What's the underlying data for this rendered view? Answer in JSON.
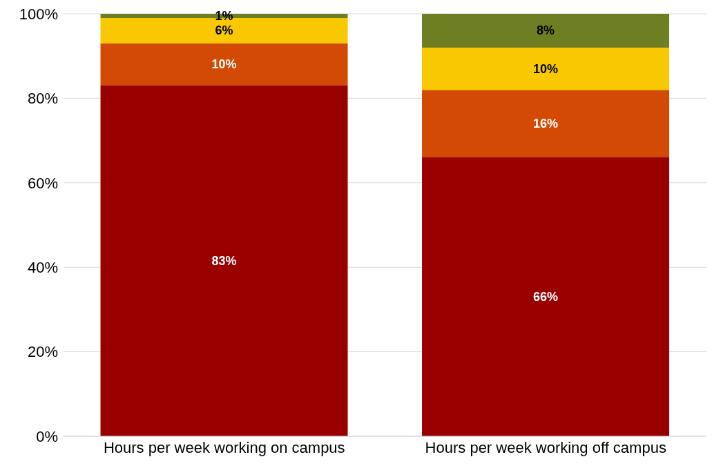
{
  "chart_data": {
    "type": "bar",
    "stacked": true,
    "categories": [
      "Hours per week working on campus",
      "Hours per week working off campus"
    ],
    "series": [
      {
        "color": "#990000",
        "values": [
          83,
          66
        ],
        "value_labels": [
          "83%",
          "66%"
        ]
      },
      {
        "color": "#d24a04",
        "values": [
          10,
          16
        ],
        "value_labels": [
          "10%",
          "16%"
        ]
      },
      {
        "color": "#f8c800",
        "values": [
          6,
          10
        ],
        "value_labels": [
          "6%",
          "10%"
        ]
      },
      {
        "color": "#6e7e22",
        "values": [
          1,
          8
        ],
        "value_labels": [
          "1%",
          "8%"
        ]
      }
    ],
    "ylim": [
      0,
      100
    ],
    "yticks": [
      {
        "value": 0,
        "label": "0%"
      },
      {
        "value": 20,
        "label": "20%"
      },
      {
        "value": 40,
        "label": "40%"
      },
      {
        "value": 60,
        "label": "60%"
      },
      {
        "value": 80,
        "label": "80%"
      },
      {
        "value": 100,
        "label": "100%"
      }
    ],
    "grid": "y",
    "legend": false
  }
}
